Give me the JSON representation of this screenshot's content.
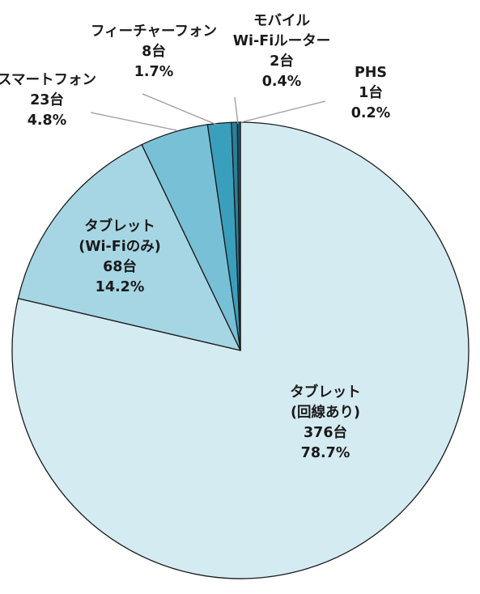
{
  "chart_data": {
    "type": "pie",
    "title": "",
    "start_angle_deg": 0,
    "direction": "clockwise",
    "slices": [
      {
        "name": "タブレット",
        "name2": "(回線あり)",
        "count_label": "376台",
        "count": 376,
        "percent_label": "78.7%",
        "percent": 78.7,
        "color": "#d4ebf2"
      },
      {
        "name": "タブレット",
        "name2": "(Wi-Fiのみ)",
        "count_label": "68台",
        "count": 68,
        "percent_label": "14.2%",
        "percent": 14.2,
        "color": "#a6d6e4"
      },
      {
        "name": "スマートフォン",
        "name2": "",
        "count_label": "23台",
        "count": 23,
        "percent_label": "4.8%",
        "percent": 4.8,
        "color": "#78c0d6"
      },
      {
        "name": "フィーチャーフォン",
        "name2": "",
        "count_label": "8台",
        "count": 8,
        "percent_label": "1.7%",
        "percent": 1.7,
        "color": "#3a9fbd"
      },
      {
        "name": "モバイル",
        "name2": "Wi-Fiルーター",
        "count_label": "2台",
        "count": 2,
        "percent_label": "0.4%",
        "percent": 0.4,
        "color": "#2a7f99"
      },
      {
        "name": "PHS",
        "name2": "",
        "count_label": "1台",
        "count": 1,
        "percent_label": "0.2%",
        "percent": 0.2,
        "color": "#1c5a6e"
      }
    ]
  }
}
